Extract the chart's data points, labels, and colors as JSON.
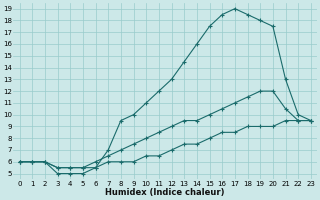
{
  "bg_color": "#cce8e8",
  "grid_color": "#99cccc",
  "line_color": "#1a6b6b",
  "xlabel": "Humidex (Indice chaleur)",
  "xlim": [
    -0.5,
    23.5
  ],
  "ylim": [
    4.5,
    19.5
  ],
  "xticks": [
    0,
    1,
    2,
    3,
    4,
    5,
    6,
    7,
    8,
    9,
    10,
    11,
    12,
    13,
    14,
    15,
    16,
    17,
    18,
    19,
    20,
    21,
    22,
    23
  ],
  "yticks": [
    5,
    6,
    7,
    8,
    9,
    10,
    11,
    12,
    13,
    14,
    15,
    16,
    17,
    18,
    19
  ],
  "line1_x": [
    0,
    1,
    2,
    3,
    4,
    5,
    6,
    7,
    8,
    9,
    10,
    11,
    12,
    13,
    14,
    15,
    16,
    17,
    18,
    19,
    20,
    21,
    22,
    23
  ],
  "line1_y": [
    6.0,
    6.0,
    6.0,
    5.0,
    5.0,
    5.0,
    5.5,
    7.0,
    9.5,
    10.0,
    11.0,
    12.0,
    13.0,
    14.5,
    16.0,
    17.5,
    18.5,
    19.0,
    18.5,
    18.0,
    17.5,
    13.0,
    10.0,
    9.5
  ],
  "line2_x": [
    0,
    1,
    2,
    3,
    4,
    5,
    6,
    7,
    8,
    9,
    10,
    11,
    12,
    13,
    14,
    15,
    16,
    17,
    18,
    19,
    20,
    21,
    22,
    23
  ],
  "line2_y": [
    6.0,
    6.0,
    6.0,
    5.5,
    5.5,
    5.5,
    6.0,
    6.5,
    7.0,
    7.5,
    8.0,
    8.5,
    9.0,
    9.5,
    9.5,
    10.0,
    10.5,
    11.0,
    11.5,
    12.0,
    12.0,
    10.5,
    9.5,
    9.5
  ],
  "line3_x": [
    0,
    1,
    2,
    3,
    4,
    5,
    6,
    7,
    8,
    9,
    10,
    11,
    12,
    13,
    14,
    15,
    16,
    17,
    18,
    19,
    20,
    21,
    22,
    23
  ],
  "line3_y": [
    6.0,
    6.0,
    6.0,
    5.5,
    5.5,
    5.5,
    5.5,
    6.0,
    6.0,
    6.0,
    6.5,
    6.5,
    7.0,
    7.5,
    7.5,
    8.0,
    8.5,
    8.5,
    9.0,
    9.0,
    9.0,
    9.5,
    9.5,
    9.5
  ],
  "xlabel_fontsize": 6.0,
  "tick_fontsize": 5.0
}
